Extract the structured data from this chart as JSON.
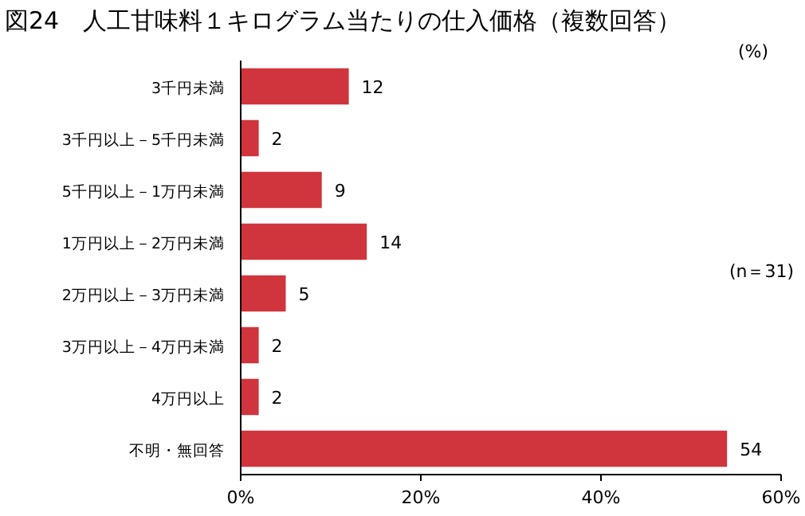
{
  "chart_data": {
    "type": "bar",
    "orientation": "horizontal",
    "title": "図24　人工甘味料１キログラム当たりの仕入価格（複数回答）",
    "categories": [
      "3千円未満",
      "3千円以上－5千円未満",
      "5千円以上－1万円未満",
      "1万円以上－2万円未満",
      "2万円以上－3万円未満",
      "3万円以上－4万円未満",
      "4万円以上",
      "不明・無回答"
    ],
    "values": [
      12,
      2,
      9,
      14,
      5,
      2,
      2,
      54
    ],
    "color": "#d0343c",
    "xlim": [
      0,
      60
    ],
    "xticks": [
      {
        "value": 0,
        "label": "0%"
      },
      {
        "value": 20,
        "label": "20%"
      },
      {
        "value": 40,
        "label": "40%"
      },
      {
        "value": 60,
        "label": "60%"
      }
    ],
    "data_labels": true,
    "annotations": [
      "(%)",
      "(n＝31)"
    ]
  }
}
